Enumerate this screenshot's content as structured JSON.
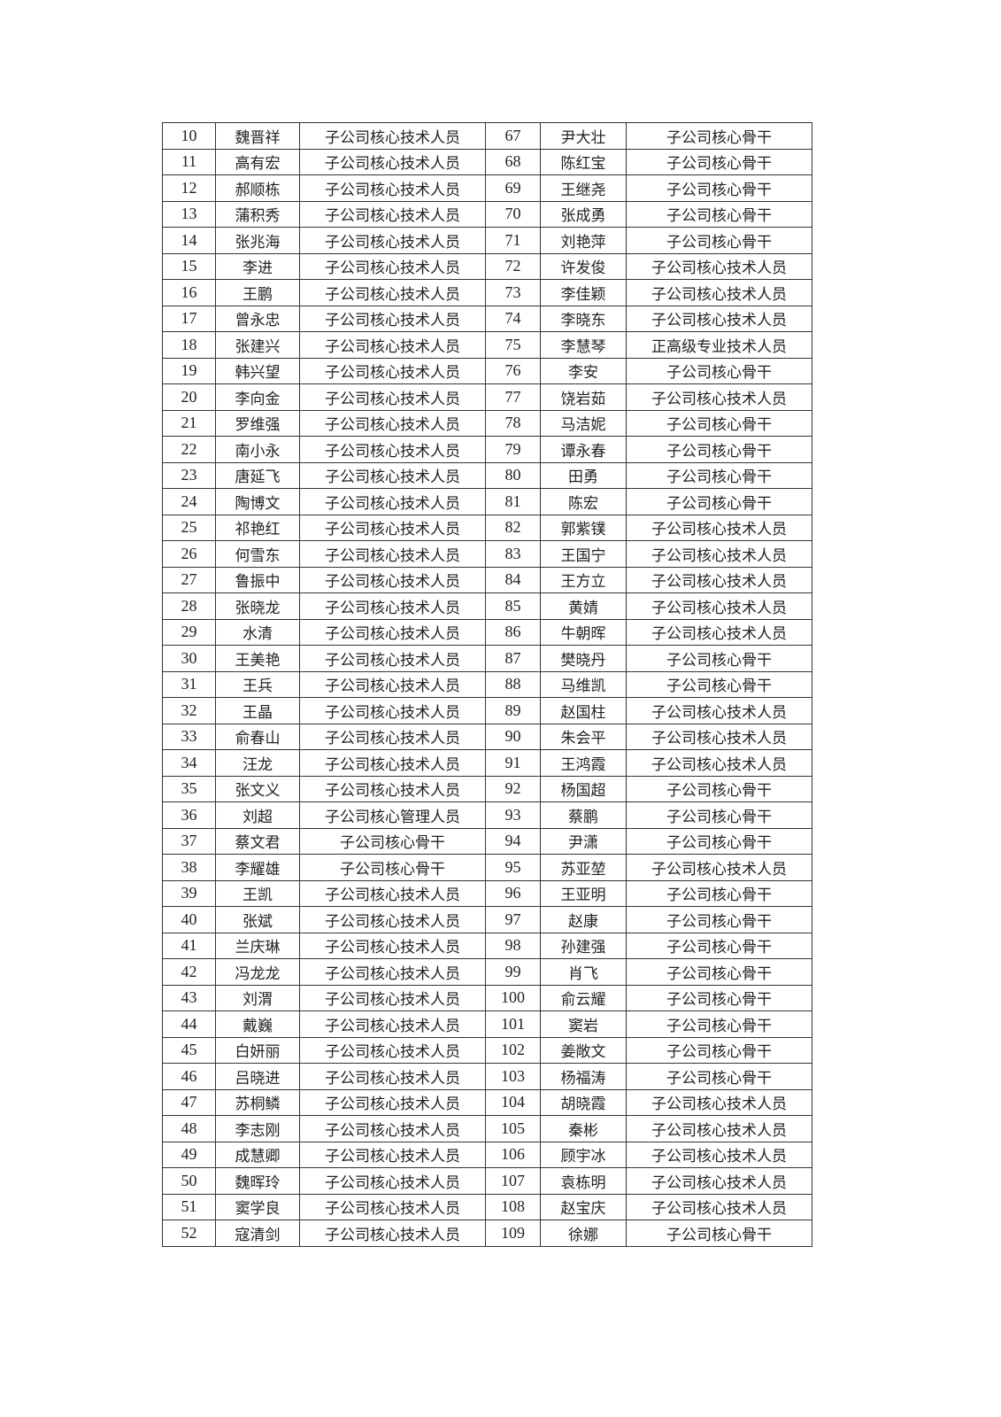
{
  "rows": [
    [
      [
        "10",
        "魏晋祥",
        "子公司核心技术人员"
      ],
      [
        "67",
        "尹大壮",
        "子公司核心骨干"
      ]
    ],
    [
      [
        "11",
        "高有宏",
        "子公司核心技术人员"
      ],
      [
        "68",
        "陈红宝",
        "子公司核心骨干"
      ]
    ],
    [
      [
        "12",
        "郝顺栋",
        "子公司核心技术人员"
      ],
      [
        "69",
        "王继尧",
        "子公司核心骨干"
      ]
    ],
    [
      [
        "13",
        "蒲积秀",
        "子公司核心技术人员"
      ],
      [
        "70",
        "张成勇",
        "子公司核心骨干"
      ]
    ],
    [
      [
        "14",
        "张兆海",
        "子公司核心技术人员"
      ],
      [
        "71",
        "刘艳萍",
        "子公司核心骨干"
      ]
    ],
    [
      [
        "15",
        "李进",
        "子公司核心技术人员"
      ],
      [
        "72",
        "许发俊",
        "子公司核心技术人员"
      ]
    ],
    [
      [
        "16",
        "王鹏",
        "子公司核心技术人员"
      ],
      [
        "73",
        "李佳颖",
        "子公司核心技术人员"
      ]
    ],
    [
      [
        "17",
        "曾永忠",
        "子公司核心技术人员"
      ],
      [
        "74",
        "李晓东",
        "子公司核心技术人员"
      ]
    ],
    [
      [
        "18",
        "张建兴",
        "子公司核心技术人员"
      ],
      [
        "75",
        "李慧琴",
        "正高级专业技术人员"
      ]
    ],
    [
      [
        "19",
        "韩兴望",
        "子公司核心技术人员"
      ],
      [
        "76",
        "李安",
        "子公司核心骨干"
      ]
    ],
    [
      [
        "20",
        "李向金",
        "子公司核心技术人员"
      ],
      [
        "77",
        "饶岩茹",
        "子公司核心技术人员"
      ]
    ],
    [
      [
        "21",
        "罗维强",
        "子公司核心技术人员"
      ],
      [
        "78",
        "马洁妮",
        "子公司核心骨干"
      ]
    ],
    [
      [
        "22",
        "南小永",
        "子公司核心技术人员"
      ],
      [
        "79",
        "谭永春",
        "子公司核心骨干"
      ]
    ],
    [
      [
        "23",
        "唐延飞",
        "子公司核心技术人员"
      ],
      [
        "80",
        "田勇",
        "子公司核心骨干"
      ]
    ],
    [
      [
        "24",
        "陶博文",
        "子公司核心技术人员"
      ],
      [
        "81",
        "陈宏",
        "子公司核心骨干"
      ]
    ],
    [
      [
        "25",
        "祁艳红",
        "子公司核心技术人员"
      ],
      [
        "82",
        "郭紫镤",
        "子公司核心技术人员"
      ]
    ],
    [
      [
        "26",
        "何雪东",
        "子公司核心技术人员"
      ],
      [
        "83",
        "王国宁",
        "子公司核心技术人员"
      ]
    ],
    [
      [
        "27",
        "鲁振中",
        "子公司核心技术人员"
      ],
      [
        "84",
        "王方立",
        "子公司核心技术人员"
      ]
    ],
    [
      [
        "28",
        "张晓龙",
        "子公司核心技术人员"
      ],
      [
        "85",
        "黄婧",
        "子公司核心技术人员"
      ]
    ],
    [
      [
        "29",
        "水清",
        "子公司核心技术人员"
      ],
      [
        "86",
        "牛朝晖",
        "子公司核心技术人员"
      ]
    ],
    [
      [
        "30",
        "王美艳",
        "子公司核心技术人员"
      ],
      [
        "87",
        "樊晓丹",
        "子公司核心骨干"
      ]
    ],
    [
      [
        "31",
        "王兵",
        "子公司核心技术人员"
      ],
      [
        "88",
        "马维凯",
        "子公司核心骨干"
      ]
    ],
    [
      [
        "32",
        "王晶",
        "子公司核心技术人员"
      ],
      [
        "89",
        "赵国柱",
        "子公司核心技术人员"
      ]
    ],
    [
      [
        "33",
        "俞春山",
        "子公司核心技术人员"
      ],
      [
        "90",
        "朱会平",
        "子公司核心技术人员"
      ]
    ],
    [
      [
        "34",
        "汪龙",
        "子公司核心技术人员"
      ],
      [
        "91",
        "王鸿霞",
        "子公司核心技术人员"
      ]
    ],
    [
      [
        "35",
        "张文义",
        "子公司核心技术人员"
      ],
      [
        "92",
        "杨国超",
        "子公司核心骨干"
      ]
    ],
    [
      [
        "36",
        "刘超",
        "子公司核心管理人员"
      ],
      [
        "93",
        "蔡鹏",
        "子公司核心骨干"
      ]
    ],
    [
      [
        "37",
        "蔡文君",
        "子公司核心骨干"
      ],
      [
        "94",
        "尹潇",
        "子公司核心骨干"
      ]
    ],
    [
      [
        "38",
        "李耀雄",
        "子公司核心骨干"
      ],
      [
        "95",
        "苏亚堃",
        "子公司核心技术人员"
      ]
    ],
    [
      [
        "39",
        "王凯",
        "子公司核心技术人员"
      ],
      [
        "96",
        "王亚明",
        "子公司核心骨干"
      ]
    ],
    [
      [
        "40",
        "张斌",
        "子公司核心技术人员"
      ],
      [
        "97",
        "赵康",
        "子公司核心骨干"
      ]
    ],
    [
      [
        "41",
        "兰庆琳",
        "子公司核心技术人员"
      ],
      [
        "98",
        "孙建强",
        "子公司核心骨干"
      ]
    ],
    [
      [
        "42",
        "冯龙龙",
        "子公司核心技术人员"
      ],
      [
        "99",
        "肖飞",
        "子公司核心骨干"
      ]
    ],
    [
      [
        "43",
        "刘渭",
        "子公司核心技术人员"
      ],
      [
        "100",
        "俞云耀",
        "子公司核心骨干"
      ]
    ],
    [
      [
        "44",
        "戴巍",
        "子公司核心技术人员"
      ],
      [
        "101",
        "窦岩",
        "子公司核心骨干"
      ]
    ],
    [
      [
        "45",
        "白妍丽",
        "子公司核心技术人员"
      ],
      [
        "102",
        "姜敞文",
        "子公司核心骨干"
      ]
    ],
    [
      [
        "46",
        "吕晓进",
        "子公司核心技术人员"
      ],
      [
        "103",
        "杨福涛",
        "子公司核心骨干"
      ]
    ],
    [
      [
        "47",
        "苏桐鳞",
        "子公司核心技术人员"
      ],
      [
        "104",
        "胡晓霞",
        "子公司核心技术人员"
      ]
    ],
    [
      [
        "48",
        "李志刚",
        "子公司核心技术人员"
      ],
      [
        "105",
        "秦彬",
        "子公司核心技术人员"
      ]
    ],
    [
      [
        "49",
        "成慧卿",
        "子公司核心技术人员"
      ],
      [
        "106",
        "顾宇冰",
        "子公司核心技术人员"
      ]
    ],
    [
      [
        "50",
        "魏晖玲",
        "子公司核心技术人员"
      ],
      [
        "107",
        "袁栋明",
        "子公司核心技术人员"
      ]
    ],
    [
      [
        "51",
        "窦学良",
        "子公司核心技术人员"
      ],
      [
        "108",
        "赵宝庆",
        "子公司核心技术人员"
      ]
    ],
    [
      [
        "52",
        "寇清剑",
        "子公司核心技术人员"
      ],
      [
        "109",
        "徐娜",
        "子公司核心骨干"
      ]
    ]
  ]
}
